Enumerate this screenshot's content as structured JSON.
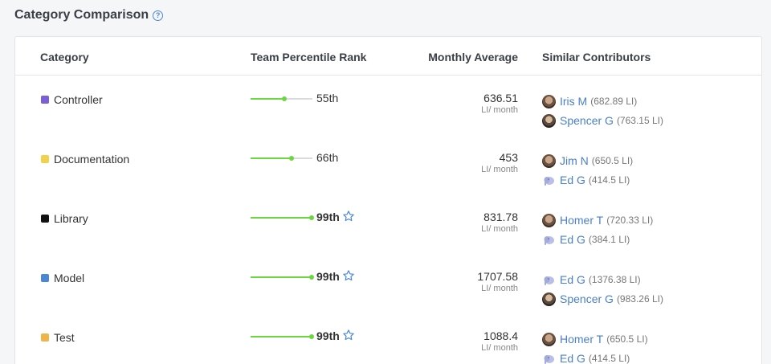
{
  "header": {
    "title": "Category Comparison",
    "help_icon": "question-circle-icon"
  },
  "columns": {
    "category": "Category",
    "rank": "Team Percentile Rank",
    "average": "Monthly Average",
    "contributors": "Similar Contributors"
  },
  "unit": "LI/ month",
  "colors": {
    "accent": "#4a7fc9",
    "progress": "#6bd640"
  },
  "rows": [
    {
      "category": "Controller",
      "color": "#7b5fd6",
      "percentile": 55,
      "rank_label": "55th",
      "top": false,
      "average": "636.51",
      "contributors": [
        {
          "name": "Iris M",
          "score": "(682.89 LI)",
          "avatar": "photo"
        },
        {
          "name": "Spencer G",
          "score": "(763.15 LI)",
          "avatar": "photo"
        }
      ]
    },
    {
      "category": "Documentation",
      "color": "#f2d24b",
      "percentile": 66,
      "rank_label": "66th",
      "top": false,
      "average": "453",
      "contributors": [
        {
          "name": "Jim N",
          "score": "(650.5 LI)",
          "avatar": "photo"
        },
        {
          "name": "Ed G",
          "score": "(414.5 LI)",
          "avatar": "elephant"
        }
      ]
    },
    {
      "category": "Library",
      "color": "#111111",
      "percentile": 99,
      "rank_label": "99th",
      "top": true,
      "average": "831.78",
      "contributors": [
        {
          "name": "Homer T",
          "score": "(720.33 LI)",
          "avatar": "photo"
        },
        {
          "name": "Ed G",
          "score": "(384.1 LI)",
          "avatar": "elephant"
        }
      ]
    },
    {
      "category": "Model",
      "color": "#4a86d6",
      "percentile": 99,
      "rank_label": "99th",
      "top": true,
      "average": "1707.58",
      "contributors": [
        {
          "name": "Ed G",
          "score": "(1376.38 LI)",
          "avatar": "elephant"
        },
        {
          "name": "Spencer G",
          "score": "(983.26 LI)",
          "avatar": "photo"
        }
      ]
    },
    {
      "category": "Test",
      "color": "#f0b54a",
      "percentile": 99,
      "rank_label": "99th",
      "top": true,
      "average": "1088.4",
      "contributors": [
        {
          "name": "Homer T",
          "score": "(650.5 LI)",
          "avatar": "photo"
        },
        {
          "name": "Ed G",
          "score": "(414.5 LI)",
          "avatar": "elephant"
        }
      ]
    }
  ]
}
